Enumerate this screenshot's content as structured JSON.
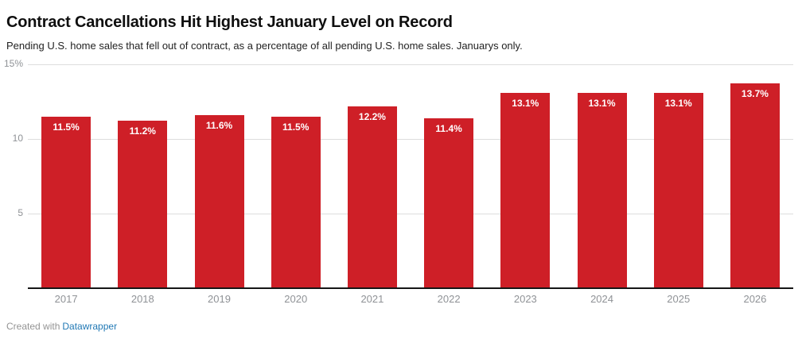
{
  "footer": {
    "created_with": "Created with",
    "link_label": "Datawrapper"
  },
  "chart_data": {
    "type": "bar",
    "title": "Contract Cancellations Hit Highest January Level on Record",
    "subtitle": "Pending U.S. home sales that fell out of contract, as a percentage of all pending U.S. home sales. Januarys only.",
    "categories": [
      "2017",
      "2018",
      "2019",
      "2020",
      "2021",
      "2022",
      "2023",
      "2024",
      "2025",
      "2026"
    ],
    "values": [
      11.5,
      11.2,
      11.6,
      11.5,
      12.2,
      11.4,
      13.1,
      13.1,
      13.1,
      13.7
    ],
    "bar_labels": [
      "11.5%",
      "11.2%",
      "11.6%",
      "11.5%",
      "12.2%",
      "11.4%",
      "13.1%",
      "13.1%",
      "13.1%",
      "13.7%"
    ],
    "xlabel": "",
    "ylabel": "",
    "ylim": [
      0,
      15
    ],
    "yticks": [
      {
        "value": 5,
        "label": "5"
      },
      {
        "value": 10,
        "label": "10"
      },
      {
        "value": 15,
        "label": "15%"
      }
    ],
    "grid": true,
    "legend": "none",
    "colors": {
      "bar": "#ce1f27",
      "bar_label": "#ffffff",
      "gridline": "#dddddd",
      "baseline": "#161616",
      "axis_text": "#8f9296",
      "link": "#2279b5"
    }
  }
}
